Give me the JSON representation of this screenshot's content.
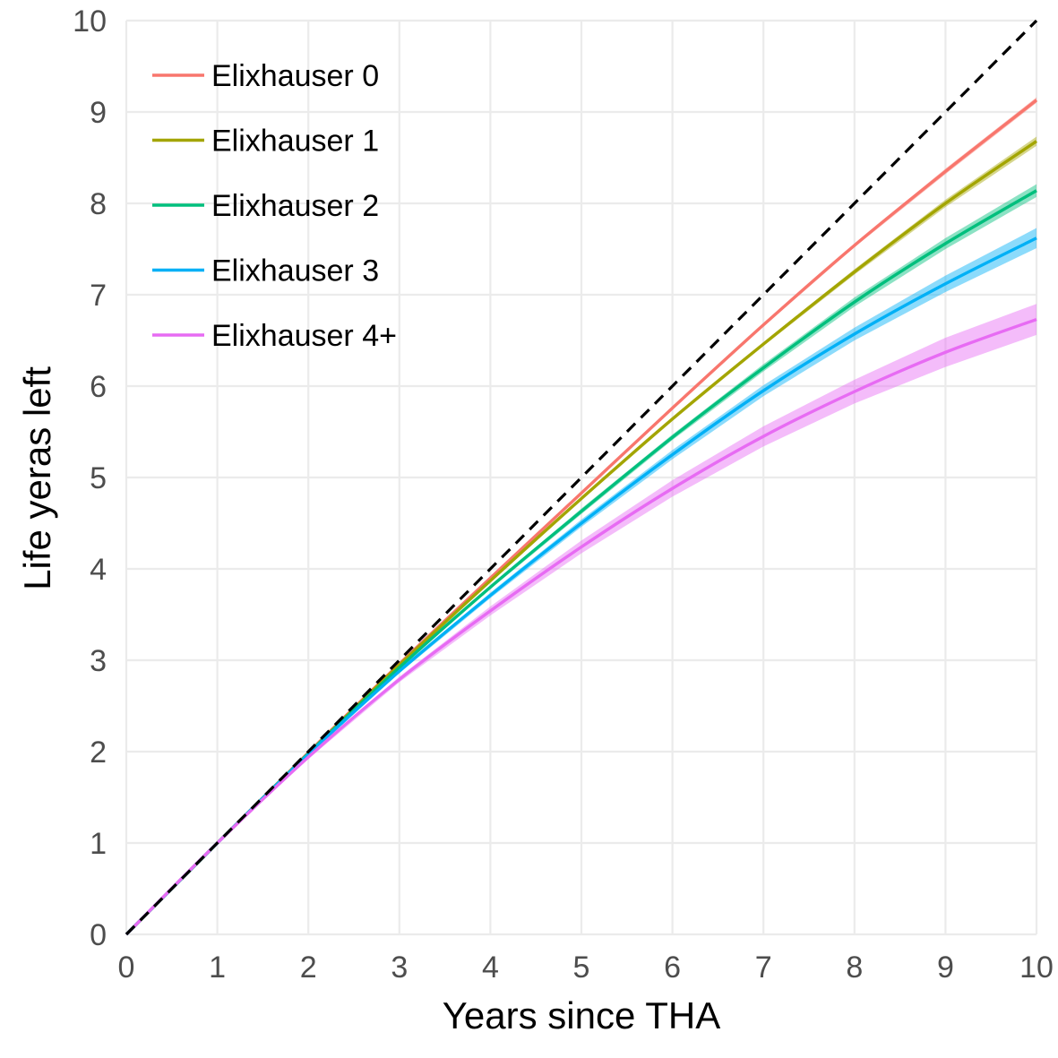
{
  "chart_data": {
    "type": "line",
    "xlabel": "Years since THA",
    "ylabel": "Life yeras left",
    "xlim": [
      0,
      10
    ],
    "ylim": [
      0,
      10
    ],
    "x_ticks": [
      "0",
      "1",
      "2",
      "3",
      "4",
      "5",
      "6",
      "7",
      "8",
      "9",
      "10"
    ],
    "y_ticks": [
      "0",
      "1",
      "2",
      "3",
      "4",
      "5",
      "6",
      "7",
      "8",
      "9",
      "10"
    ],
    "grid": true,
    "legend_position": "top-left",
    "x": [
      0,
      1,
      2,
      3,
      4,
      5,
      6,
      7,
      8,
      9,
      10
    ],
    "reference_line": {
      "style": "dashed",
      "color": "#000000",
      "x": [
        0,
        10
      ],
      "y": [
        0,
        10
      ]
    },
    "series": [
      {
        "name": "Elixhauser 0",
        "color": "#F8766D",
        "y": [
          0,
          1.0,
          1.99,
          2.96,
          3.9,
          4.83,
          5.76,
          6.67,
          7.54,
          8.35,
          9.13
        ],
        "lower": [
          0,
          1.0,
          1.99,
          2.95,
          3.89,
          4.82,
          5.74,
          6.65,
          7.52,
          8.32,
          9.1
        ],
        "upper": [
          0,
          1.0,
          1.99,
          2.97,
          3.91,
          4.84,
          5.78,
          6.69,
          7.56,
          8.38,
          9.16
        ]
      },
      {
        "name": "Elixhauser 1",
        "color": "#A3A500",
        "y": [
          0,
          1.0,
          1.98,
          2.95,
          3.87,
          4.77,
          5.64,
          6.46,
          7.25,
          8.0,
          8.68
        ],
        "lower": [
          0,
          1.0,
          1.98,
          2.94,
          3.86,
          4.75,
          5.62,
          6.44,
          7.22,
          7.96,
          8.63
        ],
        "upper": [
          0,
          1.0,
          1.98,
          2.96,
          3.88,
          4.79,
          5.66,
          6.48,
          7.28,
          8.04,
          8.73
        ]
      },
      {
        "name": "Elixhauser 2",
        "color": "#00BF7D",
        "y": [
          0,
          1.0,
          1.98,
          2.92,
          3.8,
          4.63,
          5.44,
          6.2,
          6.92,
          7.56,
          8.14
        ],
        "lower": [
          0,
          1.0,
          1.97,
          2.91,
          3.78,
          4.6,
          5.41,
          6.16,
          6.87,
          7.5,
          8.07
        ],
        "upper": [
          0,
          1.0,
          1.99,
          2.93,
          3.82,
          4.66,
          5.47,
          6.24,
          6.97,
          7.62,
          8.21
        ]
      },
      {
        "name": "Elixhauser 3",
        "color": "#00B0F6",
        "y": [
          0,
          1.0,
          1.97,
          2.88,
          3.71,
          4.5,
          5.25,
          5.95,
          6.57,
          7.12,
          7.62
        ],
        "lower": [
          0,
          1.0,
          1.96,
          2.86,
          3.68,
          4.46,
          5.2,
          5.89,
          6.5,
          7.03,
          7.51
        ],
        "upper": [
          0,
          1.0,
          1.98,
          2.9,
          3.74,
          4.54,
          5.3,
          6.01,
          6.64,
          7.21,
          7.73
        ]
      },
      {
        "name": "Elixhauser 4+",
        "color": "#E76BF3",
        "y": [
          0,
          1.0,
          1.94,
          2.79,
          3.54,
          4.24,
          4.88,
          5.45,
          5.94,
          6.37,
          6.73
        ],
        "lower": [
          0,
          1.0,
          1.92,
          2.76,
          3.49,
          4.17,
          4.79,
          5.34,
          5.81,
          6.21,
          6.56
        ],
        "upper": [
          0,
          1.0,
          1.96,
          2.82,
          3.59,
          4.31,
          4.97,
          5.56,
          6.07,
          6.53,
          6.9
        ]
      }
    ]
  }
}
